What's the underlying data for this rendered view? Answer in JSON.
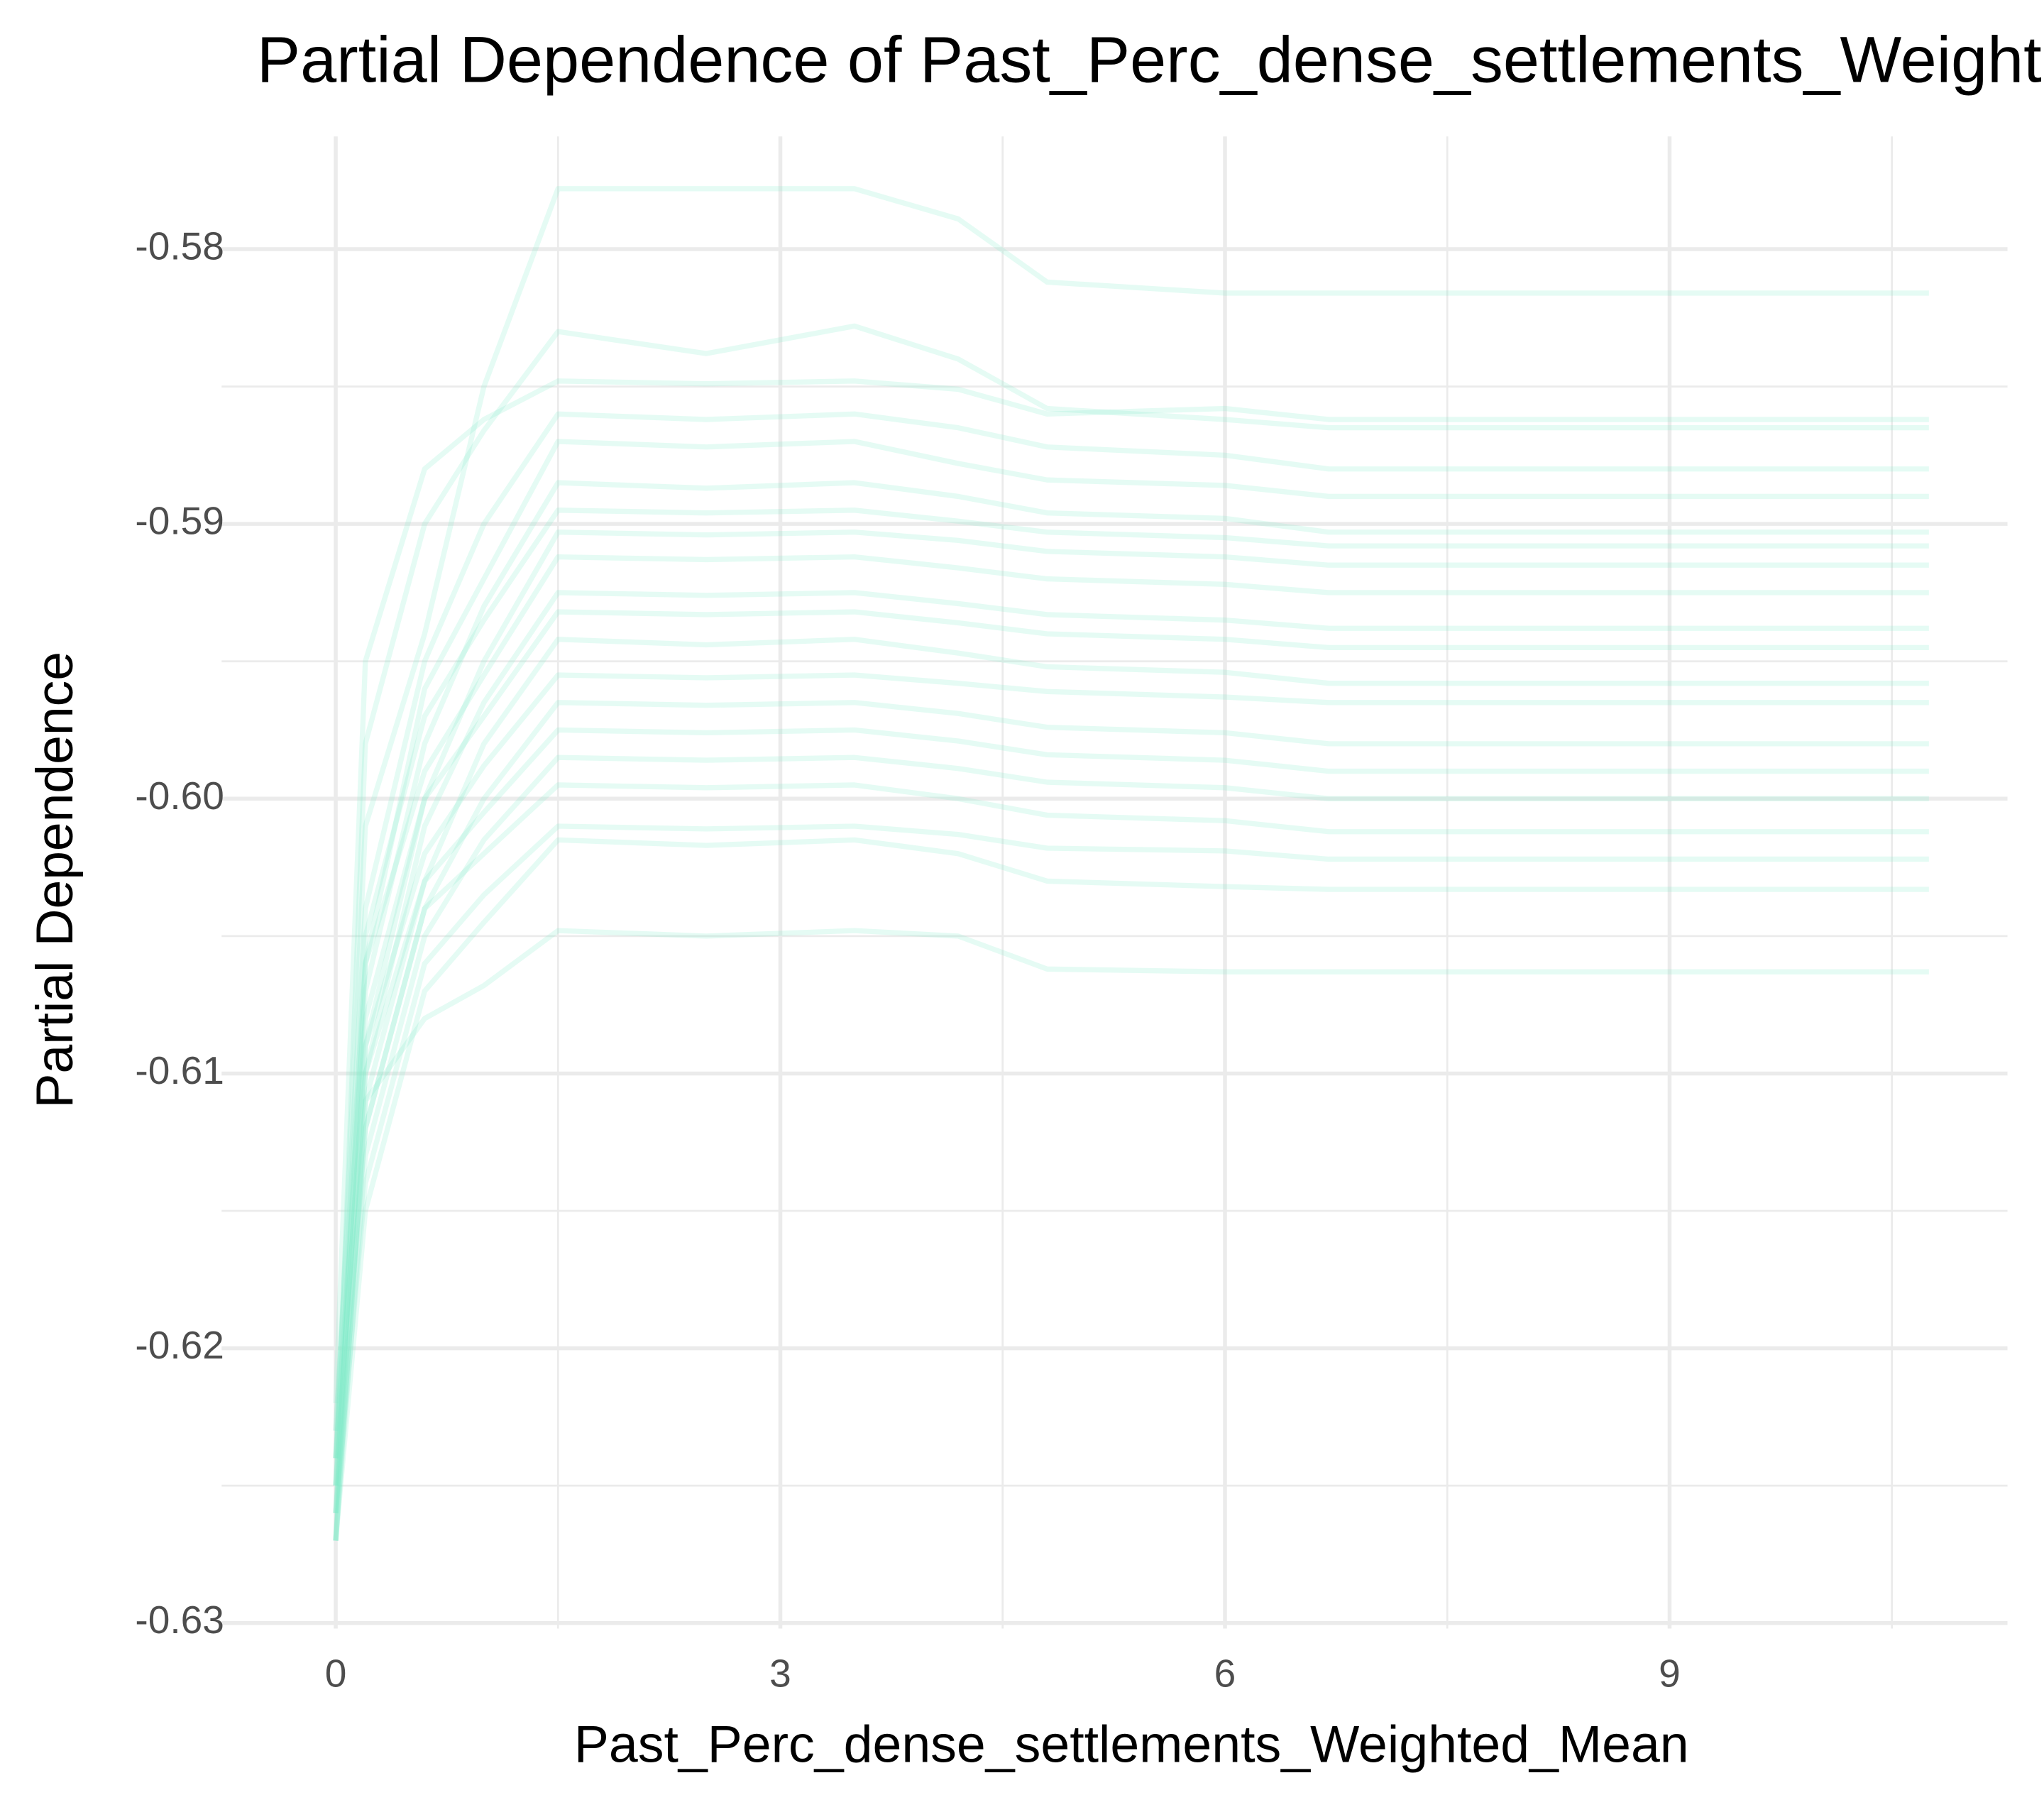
{
  "chart_data": {
    "type": "line",
    "title": "Partial Dependence of Past_Perc_dense_settlements_Weighted_Mean",
    "x_label": "Past_Perc_dense_settlements_Weighted_Mean",
    "y_label": "Partial Dependence",
    "color": "#7ee9c6",
    "line_alpha": 0.2,
    "grid": true,
    "x": [
      0,
      0.2,
      0.6,
      1.0,
      1.5,
      2.5,
      3.5,
      4.2,
      4.8,
      6.0,
      6.7,
      10.75
    ],
    "xlim": [
      -0.77,
      11.28
    ],
    "xticks": [
      0,
      3,
      6,
      9
    ],
    "minor_xticks": [
      1.5,
      4.5,
      7.5,
      10.5
    ],
    "ylim": [
      -0.6302,
      -0.5759
    ],
    "yticks": [
      {
        "value": -0.63,
        "label": "-0.63"
      },
      {
        "value": -0.62,
        "label": "-0.62"
      },
      {
        "value": -0.61,
        "label": "-0.61"
      },
      {
        "value": -0.6,
        "label": "-0.60"
      },
      {
        "value": -0.59,
        "label": "-0.59"
      },
      {
        "value": -0.58,
        "label": "-0.58"
      }
    ],
    "minor_yticks": [
      -0.625,
      -0.615,
      -0.605,
      -0.595,
      -0.585
    ],
    "series": [
      {
        "values": [
          -0.624,
          -0.601,
          -0.594,
          -0.585,
          -0.5778,
          -0.5778,
          -0.5778,
          -0.5789,
          -0.5812,
          -0.5816,
          -0.5816,
          -0.5816
        ]
      },
      {
        "values": [
          -0.625,
          -0.598,
          -0.59,
          -0.5866,
          -0.583,
          -0.5838,
          -0.5828,
          -0.584,
          -0.5858,
          -0.5862,
          -0.5865,
          -0.5865
        ]
      },
      {
        "values": [
          -0.622,
          -0.595,
          -0.588,
          -0.5862,
          -0.5848,
          -0.5849,
          -0.5848,
          -0.5851,
          -0.586,
          -0.5858,
          -0.5862,
          -0.5862
        ]
      },
      {
        "values": [
          -0.623,
          -0.604,
          -0.595,
          -0.59,
          -0.586,
          -0.5862,
          -0.586,
          -0.5865,
          -0.5872,
          -0.5875,
          -0.588,
          -0.588
        ]
      },
      {
        "values": [
          -0.626,
          -0.606,
          -0.596,
          -0.592,
          -0.587,
          -0.5872,
          -0.587,
          -0.5878,
          -0.5884,
          -0.5886,
          -0.589,
          -0.589
        ]
      },
      {
        "values": [
          -0.624,
          -0.607,
          -0.598,
          -0.593,
          -0.5885,
          -0.5887,
          -0.5885,
          -0.589,
          -0.5896,
          -0.5898,
          -0.5903,
          -0.5903
        ]
      },
      {
        "values": [
          -0.627,
          -0.605,
          -0.597,
          -0.5935,
          -0.5895,
          -0.5896,
          -0.5895,
          -0.5899,
          -0.5903,
          -0.5905,
          -0.5908,
          -0.5908
        ]
      },
      {
        "values": [
          -0.625,
          -0.609,
          -0.6,
          -0.595,
          -0.5903,
          -0.5904,
          -0.5903,
          -0.5906,
          -0.591,
          -0.5912,
          -0.5915,
          -0.5915
        ]
      },
      {
        "values": [
          -0.623,
          -0.606,
          -0.599,
          -0.5955,
          -0.5912,
          -0.5913,
          -0.5912,
          -0.5916,
          -0.592,
          -0.5922,
          -0.5925,
          -0.5925
        ]
      },
      {
        "values": [
          -0.626,
          -0.61,
          -0.601,
          -0.5965,
          -0.5925,
          -0.5926,
          -0.5925,
          -0.5929,
          -0.5933,
          -0.5935,
          -0.5938,
          -0.5938
        ]
      },
      {
        "values": [
          -0.624,
          -0.608,
          -0.6,
          -0.597,
          -0.5932,
          -0.5933,
          -0.5932,
          -0.5936,
          -0.594,
          -0.5942,
          -0.5945,
          -0.5945
        ]
      },
      {
        "values": [
          -0.627,
          -0.611,
          -0.603,
          -0.598,
          -0.5942,
          -0.5944,
          -0.5942,
          -0.5947,
          -0.5952,
          -0.5954,
          -0.5958,
          -0.5958
        ]
      },
      {
        "values": [
          -0.625,
          -0.609,
          -0.602,
          -0.5988,
          -0.5955,
          -0.5956,
          -0.5955,
          -0.5958,
          -0.5961,
          -0.5963,
          -0.5965,
          -0.5965
        ]
      },
      {
        "values": [
          -0.626,
          -0.612,
          -0.604,
          -0.6,
          -0.5965,
          -0.5966,
          -0.5965,
          -0.5969,
          -0.5974,
          -0.5976,
          -0.598,
          -0.598
        ]
      },
      {
        "values": [
          -0.624,
          -0.61,
          -0.603,
          -0.6005,
          -0.5975,
          -0.5976,
          -0.5975,
          -0.5979,
          -0.5984,
          -0.5986,
          -0.599,
          -0.599
        ]
      },
      {
        "values": [
          -0.627,
          -0.613,
          -0.605,
          -0.6015,
          -0.5985,
          -0.5986,
          -0.5985,
          -0.5989,
          -0.5994,
          -0.5996,
          -0.6,
          -0.6
        ]
      },
      {
        "values": [
          -0.625,
          -0.612,
          -0.604,
          -0.602,
          -0.5995,
          -0.5996,
          -0.5995,
          -0.6,
          -0.6006,
          -0.6008,
          -0.6012,
          -0.6012
        ]
      },
      {
        "values": [
          -0.626,
          -0.614,
          -0.606,
          -0.6035,
          -0.601,
          -0.6011,
          -0.601,
          -0.6013,
          -0.6018,
          -0.6019,
          -0.6022,
          -0.6022
        ]
      },
      {
        "values": [
          -0.627,
          -0.615,
          -0.607,
          -0.6045,
          -0.6015,
          -0.6017,
          -0.6015,
          -0.602,
          -0.603,
          -0.6032,
          -0.6033,
          -0.6033
        ]
      },
      {
        "values": [
          -0.627,
          -0.611,
          -0.608,
          -0.6068,
          -0.6048,
          -0.605,
          -0.6048,
          -0.605,
          -0.6062,
          -0.6063,
          -0.6063,
          -0.6063
        ]
      }
    ]
  }
}
